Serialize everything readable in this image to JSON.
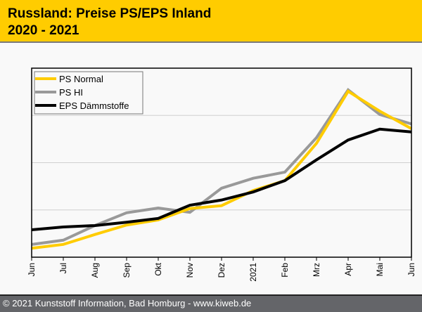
{
  "header": {
    "title_line1": "Russland: Preise PS/EPS Inland",
    "title_line2": "2020 - 2021"
  },
  "footer": {
    "text": "© 2021 Kunststoff Information, Bad Homburg - www.kiweb.de"
  },
  "chart_data": {
    "type": "line",
    "title": "Russland: Preise PS/EPS Inland 2020 - 2021",
    "xlabel": "",
    "ylabel": "",
    "y_note": "no y-axis tick labels shown; values in relative gridline units",
    "ylim": [
      0,
      4
    ],
    "grid": true,
    "legend_position": "top-left",
    "categories": [
      "Jun",
      "Jul",
      "Aug",
      "Sep",
      "Okt",
      "Nov",
      "Dez",
      "2021",
      "Feb",
      "Mrz",
      "Apr",
      "Mai",
      "Jun"
    ],
    "series": [
      {
        "name": "PS Normal",
        "color": "#ffcc00",
        "values": [
          0.19,
          0.27,
          0.48,
          0.68,
          0.79,
          1.03,
          1.09,
          1.41,
          1.62,
          2.41,
          3.51,
          3.09,
          2.72
        ]
      },
      {
        "name": "PS HI",
        "color": "#999999",
        "values": [
          0.27,
          0.36,
          0.67,
          0.94,
          1.04,
          0.95,
          1.46,
          1.67,
          1.8,
          2.53,
          3.54,
          3.02,
          2.82
        ]
      },
      {
        "name": "EPS Dämmstoffe",
        "color": "#000000",
        "values": [
          0.58,
          0.64,
          0.67,
          0.74,
          0.82,
          1.1,
          1.21,
          1.38,
          1.62,
          2.06,
          2.48,
          2.71,
          2.65
        ]
      }
    ]
  }
}
